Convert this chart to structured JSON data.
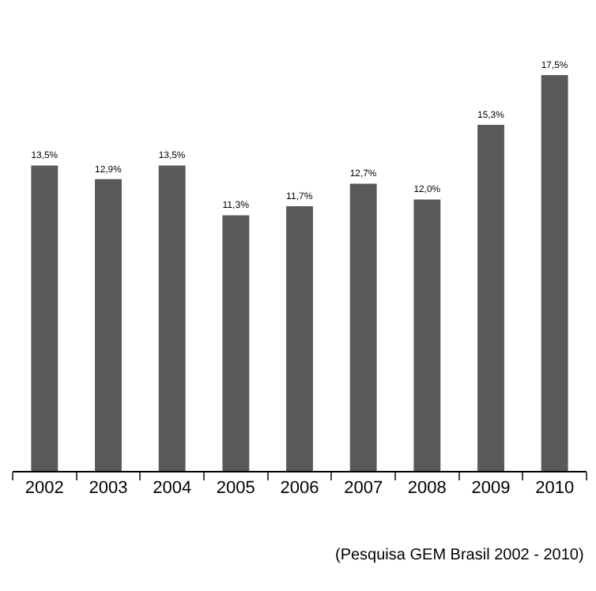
{
  "chart_data": {
    "type": "bar",
    "categories": [
      "2002",
      "2003",
      "2004",
      "2005",
      "2006",
      "2007",
      "2008",
      "2009",
      "2010"
    ],
    "values": [
      13.5,
      12.9,
      13.5,
      11.3,
      11.7,
      12.7,
      12.0,
      15.3,
      17.5
    ],
    "value_labels": [
      "13,5%",
      "12,9%",
      "13,5%",
      "11,3%",
      "11,7%",
      "12,7%",
      "12,0%",
      "15,3%",
      "17,5%"
    ],
    "color": "#595959",
    "annotations": [
      "(Pesquisa GEM Brasil 2002 - 2010)"
    ]
  }
}
